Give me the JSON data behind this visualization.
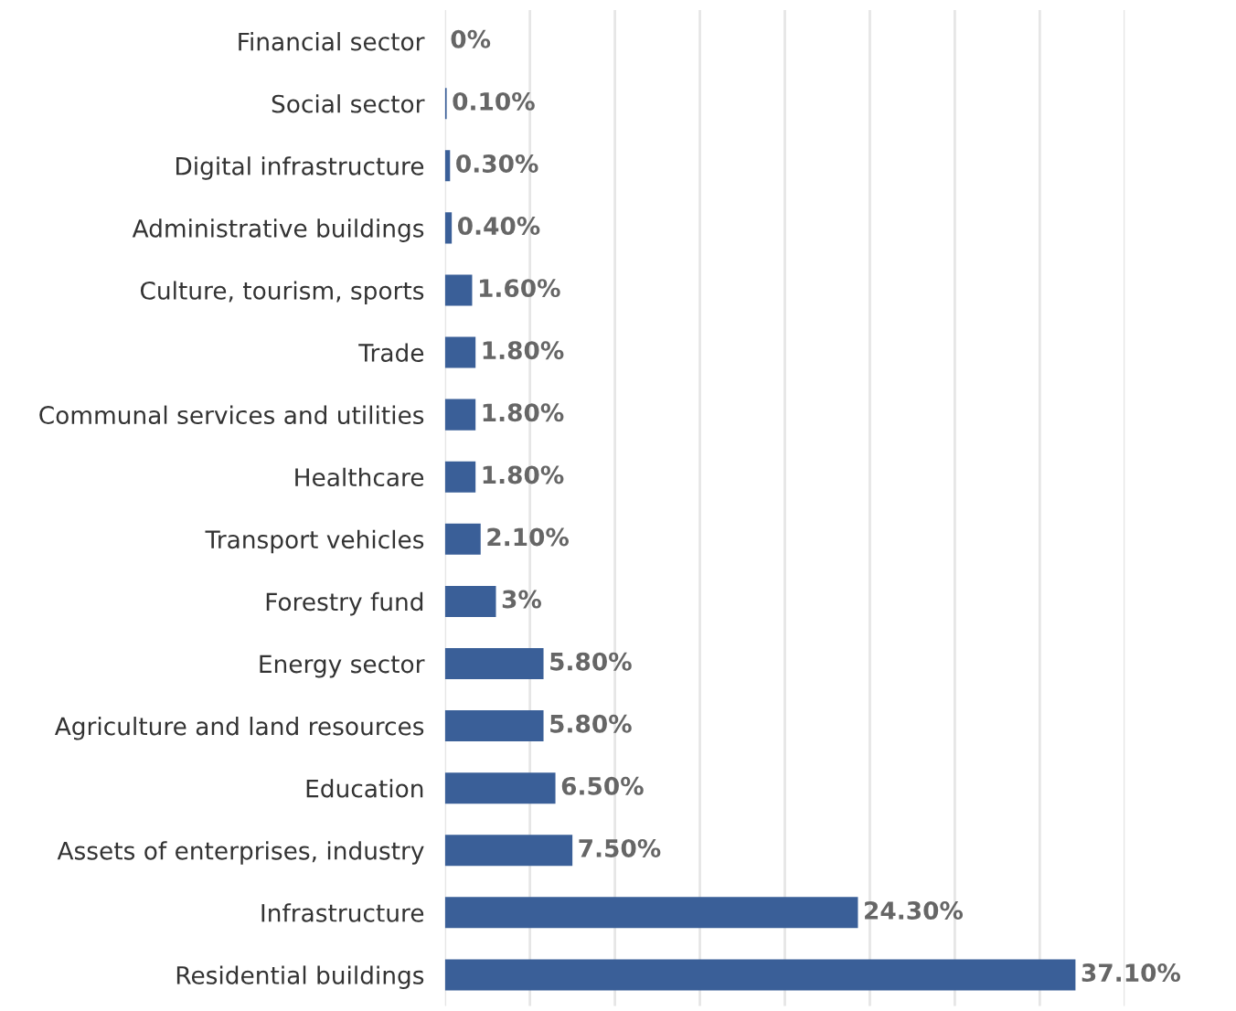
{
  "chart_data": {
    "type": "bar",
    "orientation": "horizontal",
    "categories": [
      "Financial sector",
      "Social sector",
      "Digital infrastructure",
      "Administrative buildings",
      "Culture, tourism, sports",
      "Trade",
      "Communal services and utilities",
      "Healthcare",
      "Transport vehicles",
      "Forestry fund",
      "Energy sector",
      "Agriculture and land resources",
      "Education",
      "Assets of enterprises, industry",
      "Infrastructure",
      "Residential buildings"
    ],
    "values": [
      0,
      0.1,
      0.3,
      0.4,
      1.6,
      1.8,
      1.8,
      1.8,
      2.1,
      3,
      5.8,
      5.8,
      6.5,
      7.5,
      24.3,
      37.1
    ],
    "value_labels": [
      "0%",
      "0.10%",
      "0.30%",
      "0.40%",
      "1.60%",
      "1.80%",
      "1.80%",
      "1.80%",
      "2.10%",
      "3%",
      "5.80%",
      "5.80%",
      "6.50%",
      "7.50%",
      "24.30%",
      "37.10%"
    ],
    "color": "#3a5f98",
    "xlim": [
      0,
      40
    ],
    "xticks": [
      {
        "value": 0,
        "label": null
      },
      {
        "value": 5,
        "label": null
      },
      {
        "value": 10,
        "label": null
      },
      {
        "value": 15,
        "label": null
      },
      {
        "value": 20,
        "label": null
      },
      {
        "value": 25,
        "label": null
      },
      {
        "value": 30,
        "label": null
      },
      {
        "value": 35,
        "label": null
      },
      {
        "value": 40,
        "label": null
      }
    ],
    "grid": "x",
    "tick_labels": "y"
  }
}
